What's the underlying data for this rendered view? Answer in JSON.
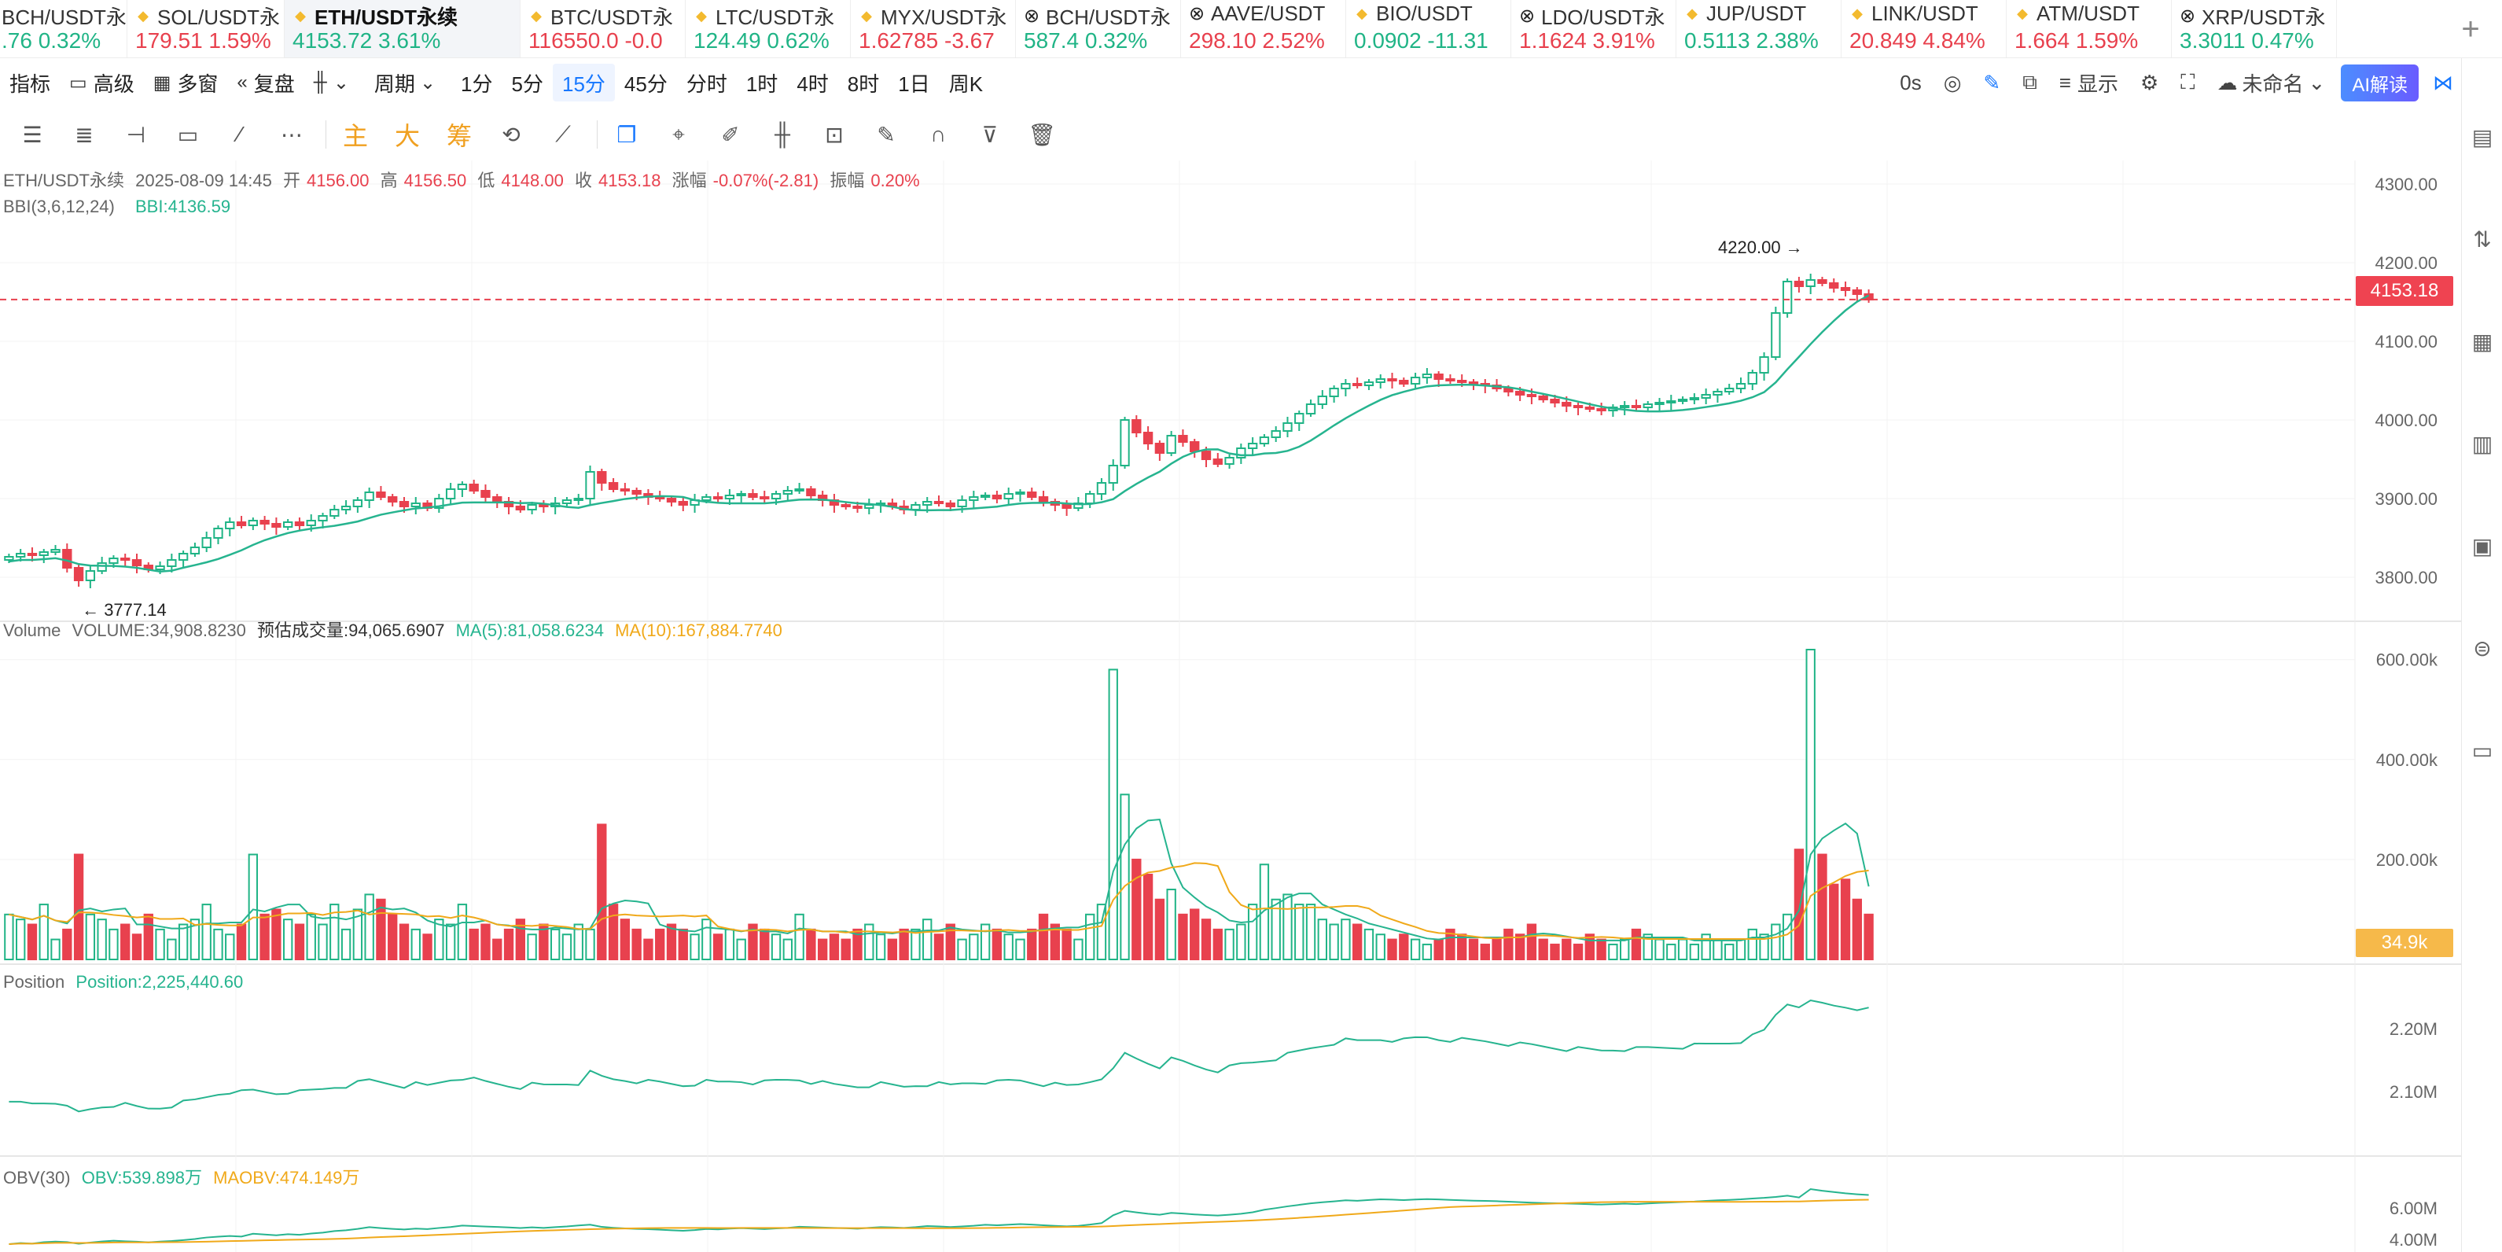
{
  "ticker": [
    {
      "name": "BCH/USDT永",
      "price": ".76",
      "change": "0.32%",
      "dir": "up",
      "sym": ""
    },
    {
      "name": "SOL/USDT永",
      "price": "179.51",
      "change": "1.59%",
      "dir": "dn",
      "sym": "fav"
    },
    {
      "name": "ETH/USDT永续",
      "price": "4153.72",
      "change": "3.61%",
      "dir": "up",
      "sym": "fav",
      "active": true
    },
    {
      "name": "BTC/USDT永",
      "price": "116550.0",
      "change": "-0.0",
      "dir": "dn",
      "sym": "fav"
    },
    {
      "name": "LTC/USDT永",
      "price": "124.49",
      "change": "0.62%",
      "dir": "up",
      "sym": "fav"
    },
    {
      "name": "MYX/USDT永",
      "price": "1.62785",
      "change": "-3.67",
      "dir": "dn",
      "sym": "fav"
    },
    {
      "name": "BCH/USDT永",
      "price": "587.4",
      "change": "0.32%",
      "dir": "up",
      "sym": "spot"
    },
    {
      "name": "AAVE/USDT",
      "price": "298.10",
      "change": "2.52%",
      "dir": "dn",
      "sym": "spot"
    },
    {
      "name": "BIO/USDT",
      "price": "0.0902",
      "change": "-11.31",
      "dir": "up",
      "sym": "fav"
    },
    {
      "name": "LDO/USDT永",
      "price": "1.1624",
      "change": "3.91%",
      "dir": "dn",
      "sym": "spot"
    },
    {
      "name": "JUP/USDT",
      "price": "0.5113",
      "change": "2.38%",
      "dir": "up",
      "sym": "fav"
    },
    {
      "name": "LINK/USDT",
      "price": "20.849",
      "change": "4.84%",
      "dir": "dn",
      "sym": "fav"
    },
    {
      "name": "ATM/USDT",
      "price": "1.664",
      "change": "1.59%",
      "dir": "dn",
      "sym": "fav"
    },
    {
      "name": "XRP/USDT永",
      "price": "3.3011",
      "change": "0.47%",
      "dir": "up",
      "sym": "spot"
    }
  ],
  "toolbar": {
    "indicators": "指标",
    "advanced": "高级",
    "multi_window": "多窗",
    "replay": "复盘",
    "period": "周期",
    "intervals": [
      "1分",
      "5分",
      "15分",
      "45分",
      "分时",
      "1时",
      "4时",
      "8时",
      "1日",
      "周K"
    ],
    "selected_interval": "15分",
    "countdown": "0s",
    "display": "显示",
    "unnamed": "未命名",
    "ai": "AI解读"
  },
  "drawbar": {
    "main": "主",
    "big": "大",
    "chips": "筹"
  },
  "chart_info": {
    "symbol": "ETH/USDT永续",
    "datetime": "2025-08-09 14:45",
    "open_label": "开",
    "open": "4156.00",
    "high_label": "高",
    "high": "4156.50",
    "low_label": "低",
    "low": "4148.00",
    "close_label": "收",
    "close": "4153.18",
    "change_label": "涨幅",
    "change": "-0.07%(-2.81)",
    "amp_label": "振幅",
    "amp": "0.20%",
    "bbi_name": "BBI(3,6,12,24)",
    "bbi_value": "BBI:4136.59",
    "max_marker": "4220.00 →",
    "min_marker": "← 3777.14",
    "last_price": "4153.18"
  },
  "volume_info": {
    "title": "Volume",
    "volume": "VOLUME:34,908.8230",
    "estimate": "预估成交量:94,065.6907",
    "ma5": "MA(5):81,058.6234",
    "ma10": "MA(10):167,884.7740",
    "last_volume": "34.9k"
  },
  "position_info": {
    "title": "Position",
    "value": "Position:2,225,440.60"
  },
  "obv_info": {
    "title": "OBV(30)",
    "obv": "OBV:539.898万",
    "maobv": "MAOBV:474.149万"
  },
  "axes": {
    "price": [
      "4300.00",
      "4200.00",
      "4100.00",
      "4000.00",
      "3900.00",
      "3800.00"
    ],
    "volume": [
      "600.00k",
      "400.00k",
      "200.00k"
    ],
    "position": [
      "2.20M",
      "2.10M"
    ],
    "obv": [
      "6.00M",
      "4.00M"
    ]
  },
  "colors": {
    "up": "#20b486",
    "down": "#e8414e",
    "bbi": "#26b48f",
    "ma10": "#f0a91a",
    "accent": "#1677ff"
  },
  "chart_data": {
    "type": "candlestick",
    "price_range": [
      3750,
      4310
    ],
    "volume_range": [
      0,
      620000
    ],
    "close_series": [
      3826,
      3830,
      3828,
      3832,
      3835,
      3812,
      3796,
      3808,
      3818,
      3824,
      3822,
      3815,
      3810,
      3814,
      3822,
      3830,
      3838,
      3850,
      3862,
      3870,
      3866,
      3872,
      3868,
      3864,
      3870,
      3866,
      3872,
      3878,
      3886,
      3890,
      3898,
      3908,
      3902,
      3896,
      3890,
      3894,
      3888,
      3900,
      3912,
      3918,
      3910,
      3902,
      3896,
      3890,
      3886,
      3892,
      3890,
      3894,
      3898,
      3900,
      3934,
      3920,
      3912,
      3910,
      3906,
      3902,
      3900,
      3896,
      3892,
      3898,
      3902,
      3900,
      3904,
      3906,
      3902,
      3900,
      3906,
      3910,
      3912,
      3904,
      3898,
      3892,
      3890,
      3888,
      3892,
      3894,
      3890,
      3886,
      3892,
      3896,
      3894,
      3890,
      3898,
      3902,
      3904,
      3900,
      3906,
      3908,
      3902,
      3896,
      3892,
      3888,
      3894,
      3906,
      3920,
      3942,
      4000,
      3984,
      3970,
      3958,
      3980,
      3972,
      3960,
      3950,
      3944,
      3952,
      3964,
      3970,
      3978,
      3986,
      3996,
      4008,
      4020,
      4030,
      4040,
      4046,
      4044,
      4048,
      4052,
      4050,
      4046,
      4054,
      4058,
      4052,
      4050,
      4048,
      4046,
      4044,
      4040,
      4036,
      4032,
      4030,
      4026,
      4022,
      4018,
      4016,
      4014,
      4012,
      4016,
      4018,
      4016,
      4020,
      4022,
      4024,
      4026,
      4028,
      4032,
      4036,
      4040,
      4046,
      4060,
      4080,
      4136,
      4176,
      4170,
      4178,
      4174,
      4168,
      4165,
      4160,
      4153
    ],
    "volume_series": [
      90000,
      80000,
      70000,
      110000,
      40000,
      60000,
      210000,
      90000,
      80000,
      60000,
      70000,
      50000,
      90000,
      60000,
      40000,
      70000,
      80000,
      110000,
      60000,
      50000,
      70000,
      210000,
      90000,
      100000,
      80000,
      70000,
      90000,
      70000,
      110000,
      60000,
      100000,
      130000,
      120000,
      90000,
      70000,
      60000,
      50000,
      80000,
      70000,
      110000,
      60000,
      70000,
      40000,
      60000,
      80000,
      50000,
      70000,
      60000,
      50000,
      70000,
      60000,
      270000,
      110000,
      80000,
      60000,
      40000,
      60000,
      70000,
      60000,
      50000,
      80000,
      50000,
      60000,
      40000,
      70000,
      60000,
      50000,
      40000,
      90000,
      60000,
      40000,
      50000,
      40000,
      60000,
      70000,
      50000,
      40000,
      60000,
      60000,
      80000,
      50000,
      70000,
      40000,
      50000,
      70000,
      60000,
      50000,
      40000,
      60000,
      90000,
      70000,
      60000,
      40000,
      90000,
      110000,
      580000,
      330000,
      200000,
      170000,
      120000,
      140000,
      90000,
      100000,
      80000,
      60000,
      60000,
      70000,
      110000,
      190000,
      120000,
      130000,
      110000,
      110000,
      80000,
      70000,
      80000,
      70000,
      60000,
      50000,
      40000,
      50000,
      40000,
      30000,
      40000,
      60000,
      50000,
      40000,
      30000,
      40000,
      60000,
      50000,
      70000,
      40000,
      30000,
      40000,
      30000,
      50000,
      40000,
      30000,
      40000,
      60000,
      50000,
      40000,
      30000,
      40000,
      30000,
      50000,
      40000,
      30000,
      40000,
      60000,
      50000,
      70000,
      90000,
      220000,
      620000,
      210000,
      150000,
      160000,
      120000,
      90000,
      60000,
      35000
    ]
  }
}
